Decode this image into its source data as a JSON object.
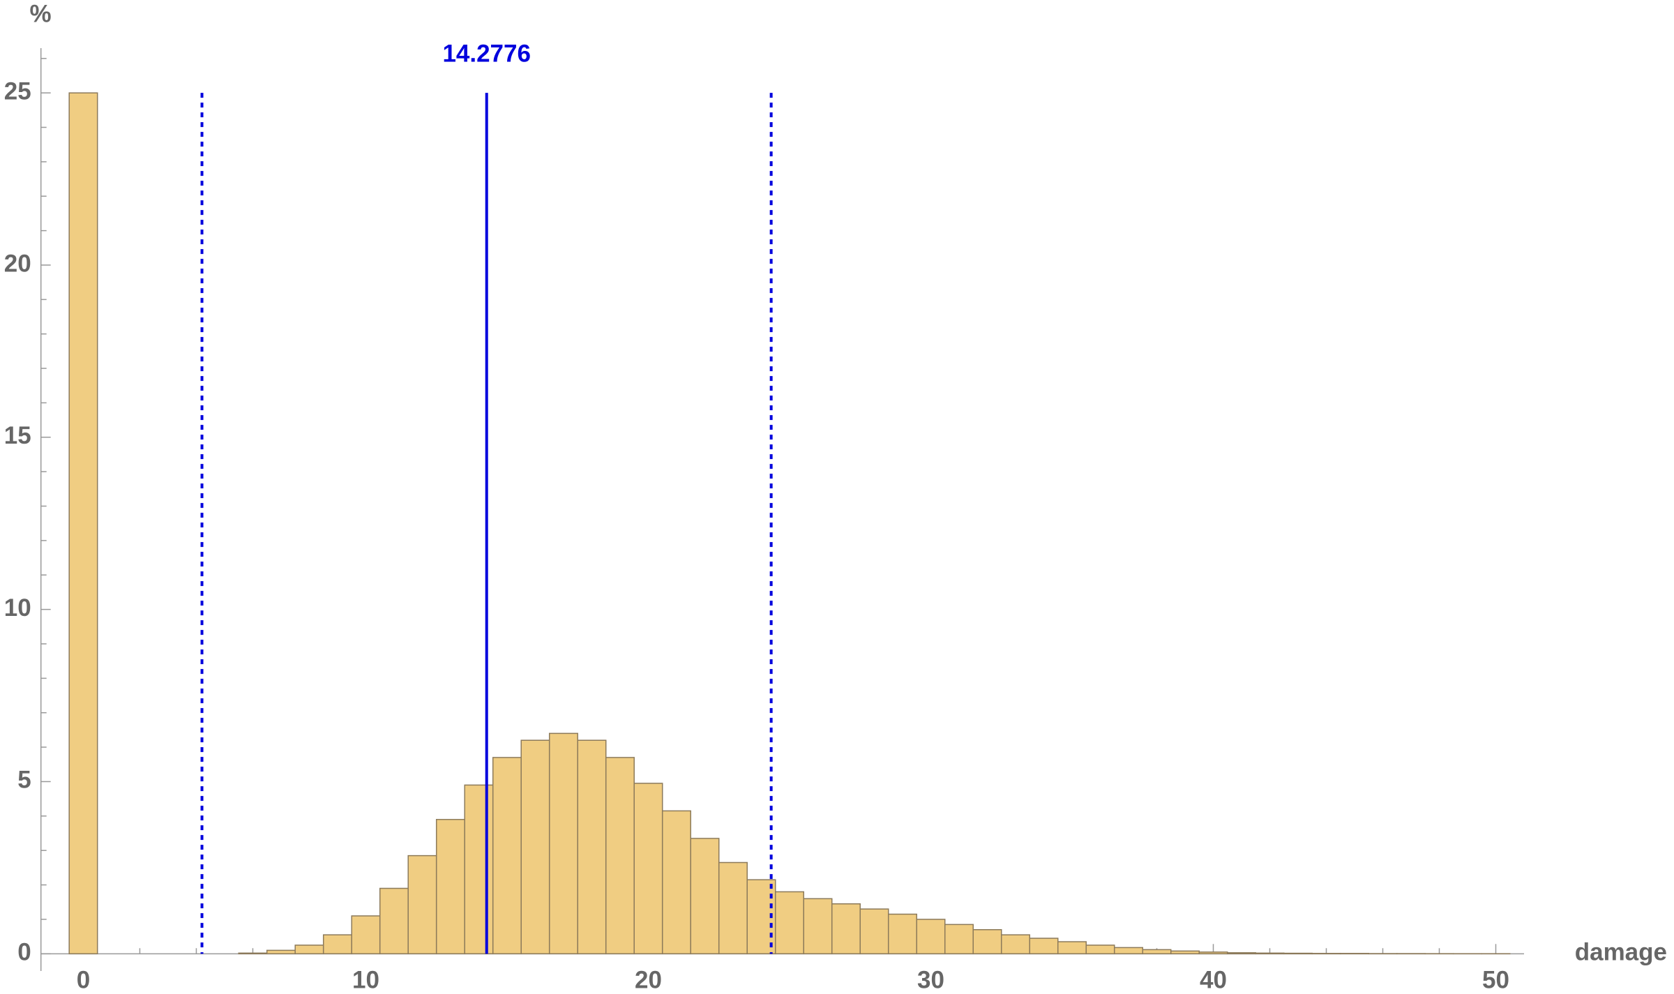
{
  "chart_data": {
    "type": "histogram",
    "x_label": "damage",
    "y_label": "%",
    "color": "#f0cd82",
    "edge_color": "#8c7a5a",
    "bins": [
      -0.5,
      0.5,
      1.5,
      2.5,
      3.5,
      4.5,
      5.5,
      6.5,
      7.5,
      8.5,
      9.5,
      10.5,
      11.5,
      12.5,
      13.5,
      14.5,
      15.5,
      16.5,
      17.5,
      18.5,
      19.5,
      20.5,
      21.5,
      22.5,
      23.5,
      24.5,
      25.5,
      26.5,
      27.5,
      28.5,
      29.5,
      30.5,
      31.5,
      32.5,
      33.5,
      34.5,
      35.5,
      36.5,
      37.5,
      38.5,
      39.5,
      40.5,
      41.5,
      42.5,
      43.5,
      44.5,
      45.5,
      46.5,
      47.5,
      48.5,
      49.5,
      50.5
    ],
    "values": [
      25,
      0,
      0,
      0,
      0,
      0,
      0.02,
      0.1,
      0.25,
      0.55,
      1.1,
      1.9,
      2.85,
      3.9,
      4.9,
      5.7,
      6.2,
      6.4,
      6.2,
      5.7,
      4.95,
      4.15,
      3.35,
      2.65,
      2.15,
      1.8,
      1.6,
      1.45,
      1.3,
      1.15,
      1.0,
      0.85,
      0.7,
      0.55,
      0.45,
      0.35,
      0.25,
      0.18,
      0.12,
      0.08,
      0.05,
      0.03,
      0.02,
      0.015,
      0.01,
      0.01,
      0.005,
      0.005,
      0.003,
      0.002,
      0.002
    ],
    "mean": 14.2776,
    "bounds": [
      4.2,
      24.35
    ],
    "line_color": "#0000dd",
    "xlim": [
      -1.5,
      51
    ],
    "ylim": [
      -0.5,
      26.3
    ],
    "xticks": [
      0,
      10,
      20,
      30,
      40,
      50
    ],
    "yticks": [
      0,
      5,
      10,
      15,
      20,
      25
    ]
  }
}
